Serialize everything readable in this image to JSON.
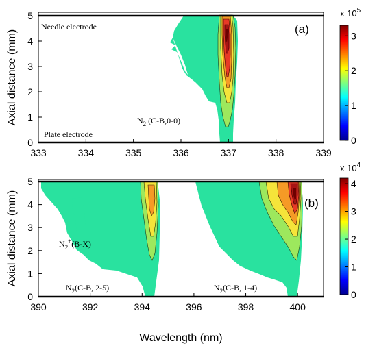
{
  "chart_data": [
    {
      "type": "heatmap",
      "panel_label": "(a)",
      "xlabel": "",
      "ylabel": "Axial distance (mm)",
      "xlim": [
        333,
        339
      ],
      "ylim": [
        0,
        5
      ],
      "xticks": [
        "333",
        "334",
        "335",
        "336",
        "337",
        "338",
        "339"
      ],
      "yticks": [
        "0",
        "1",
        "2",
        "3",
        "4",
        "5"
      ],
      "annotations": {
        "top_electrode": "Needle electrode",
        "bottom_electrode": "Plate electrode",
        "band": "N",
        "band_sub": "2",
        "band_rest": " (C-B,0-0)"
      },
      "colorbar": {
        "min": 0,
        "max": 330000,
        "ticks": [
          "0",
          "1",
          "2",
          "3"
        ],
        "multiplier_base": "x 10",
        "multiplier_exp": "5"
      },
      "bands": [
        {
          "center_nm": 336.98,
          "peak_y_mm": 4.2,
          "peak_value": 330000
        }
      ]
    },
    {
      "type": "heatmap",
      "panel_label": "(b)",
      "xlabel": "Wavelength (nm)",
      "ylabel": "Axial distance (mm)",
      "xlim": [
        390,
        401
      ],
      "ylim": [
        0,
        5
      ],
      "xticks": [
        "390",
        "392",
        "394",
        "396",
        "398",
        "400"
      ],
      "yticks": [
        "0",
        "1",
        "2",
        "3",
        "4",
        "5"
      ],
      "annotations": {
        "ion_band": "N",
        "ion_band_sub": "2",
        "ion_band_sup": "+",
        "ion_band_rest": "(B-X)",
        "band_25": "N",
        "band_25_sub": "2",
        "band_25_rest": "(C-B, 2-5)",
        "band_14": "N",
        "band_14_sub": "2",
        "band_14_rest": "(C-B, 1-4)"
      },
      "colorbar": {
        "min": 0,
        "max": 42000,
        "ticks": [
          "0",
          "1",
          "2",
          "3",
          "4"
        ],
        "multiplier_base": "x 10",
        "multiplier_exp": "4"
      },
      "bands": [
        {
          "center_nm": 394.3,
          "peak_y_mm": 4.0,
          "peak_value": 22000
        },
        {
          "center_nm": 399.8,
          "peak_y_mm": 4.0,
          "peak_value": 42000
        }
      ]
    }
  ]
}
